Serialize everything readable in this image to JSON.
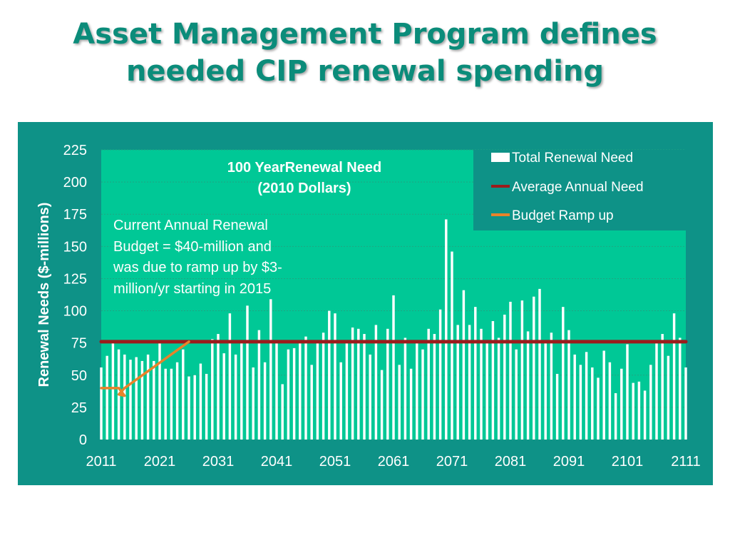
{
  "slide": {
    "title_line1": "Asset Management Program defines",
    "title_line2": "needed CIP renewal spending"
  },
  "colors": {
    "title": "#0b8c7a",
    "outer_background": "#0e9287",
    "plot_background": "#00c896",
    "bars": "#ffffff",
    "average_line": "#9b1c1c",
    "ramp_line": "#e8832a",
    "axis_text": "#ffffff",
    "annotation_text": "#ffffff"
  },
  "chart_data": {
    "type": "bar",
    "title": "100 YearRenewal Need",
    "subtitle": "(2010 Dollars)",
    "ylabel": "Renewal Needs ($-millions)",
    "xlabel": "",
    "ylim": [
      0,
      225
    ],
    "yticks": [
      0,
      25,
      50,
      75,
      100,
      125,
      150,
      175,
      200,
      225
    ],
    "xlim": [
      2011,
      2111
    ],
    "xticks": [
      2011,
      2021,
      2031,
      2041,
      2051,
      2061,
      2071,
      2081,
      2091,
      2101,
      2111
    ],
    "grid": true,
    "legend_position": "top-right",
    "legend": [
      "Total Renewal Need",
      "Average Annual Need",
      "Budget Ramp up"
    ],
    "annotation": [
      "Current Annual Renewal",
      "Budget = $40-million and",
      "was due to ramp up by $3-",
      "million/yr starting in 2015"
    ],
    "series": [
      {
        "name": "Total Renewal Need",
        "type": "bar",
        "x_start": 2011,
        "values": [
          56,
          65,
          75,
          70,
          66,
          62,
          64,
          61,
          66,
          61,
          75,
          55,
          55,
          60,
          70,
          49,
          50,
          59,
          51,
          78,
          82,
          67,
          98,
          66,
          77,
          104,
          56,
          85,
          60,
          109,
          76,
          43,
          70,
          71,
          75,
          80,
          58,
          76,
          83,
          100,
          98,
          60,
          75,
          87,
          86,
          82,
          66,
          89,
          54,
          86,
          112,
          58,
          79,
          55,
          76,
          70,
          86,
          82,
          101,
          171,
          146,
          89,
          116,
          89,
          103,
          86,
          76,
          92,
          79,
          97,
          107,
          70,
          108,
          84,
          111,
          117,
          75,
          83,
          51,
          103,
          85,
          66,
          58,
          68,
          56,
          48,
          69,
          60,
          36,
          55,
          74,
          44,
          45,
          38,
          58,
          75,
          82,
          65,
          98,
          79,
          56
        ]
      },
      {
        "name": "Average Annual Need",
        "type": "line",
        "x": [
          2011,
          2111
        ],
        "values": [
          76,
          76
        ]
      },
      {
        "name": "Budget Ramp up",
        "type": "line",
        "x": [
          2011,
          2014,
          2015,
          2014,
          2015,
          2026
        ],
        "values": [
          40,
          40,
          34,
          35,
          40,
          76
        ]
      }
    ]
  }
}
